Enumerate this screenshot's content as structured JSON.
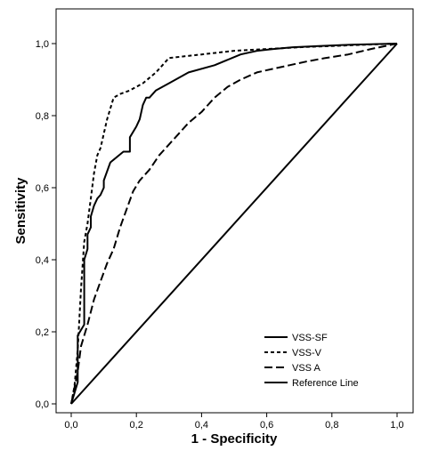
{
  "chart_data": {
    "type": "line",
    "title": "",
    "xlabel": "1 - Specificity",
    "ylabel": "Sensitivity",
    "xlim": [
      0,
      1
    ],
    "ylim": [
      0,
      1
    ],
    "grid": false,
    "legend_position": "bottom-right",
    "x_ticks": [
      "0,0",
      "0,2",
      "0,4",
      "0,6",
      "0,8",
      "1,0"
    ],
    "y_ticks": [
      "0,0",
      "0,2",
      "0,4",
      "0,6",
      "0,8",
      "1,0"
    ],
    "series": [
      {
        "name": "VSS-SF",
        "dash": "solid",
        "x": [
          0,
          0.02,
          0.02,
          0.04,
          0.04,
          0.05,
          0.05,
          0.06,
          0.06,
          0.07,
          0.08,
          0.09,
          0.1,
          0.1,
          0.12,
          0.16,
          0.18,
          0.18,
          0.2,
          0.21,
          0.22,
          0.23,
          0.24,
          0.26,
          0.3,
          0.36,
          0.44,
          0.52,
          0.57,
          0.62,
          0.68,
          0.76,
          0.86,
          1.0
        ],
        "y": [
          0,
          0.06,
          0.19,
          0.22,
          0.4,
          0.43,
          0.47,
          0.49,
          0.52,
          0.55,
          0.57,
          0.58,
          0.6,
          0.62,
          0.67,
          0.7,
          0.7,
          0.74,
          0.77,
          0.79,
          0.83,
          0.85,
          0.85,
          0.87,
          0.89,
          0.92,
          0.94,
          0.97,
          0.98,
          0.985,
          0.99,
          0.993,
          0.997,
          1.0
        ]
      },
      {
        "name": "VSS-V",
        "dash": "short",
        "x": [
          0,
          0.01,
          0.02,
          0.03,
          0.04,
          0.05,
          0.06,
          0.07,
          0.08,
          0.09,
          0.11,
          0.13,
          0.15,
          0.18,
          0.22,
          0.26,
          0.3,
          0.4,
          0.5,
          0.6,
          0.7,
          0.85,
          1.0
        ],
        "y": [
          0,
          0.05,
          0.15,
          0.32,
          0.45,
          0.5,
          0.57,
          0.64,
          0.69,
          0.71,
          0.79,
          0.85,
          0.86,
          0.87,
          0.89,
          0.92,
          0.96,
          0.97,
          0.98,
          0.985,
          0.99,
          0.995,
          1.0
        ]
      },
      {
        "name": "VSS A",
        "dash": "long",
        "x": [
          0,
          0.02,
          0.03,
          0.05,
          0.07,
          0.09,
          0.11,
          0.13,
          0.15,
          0.17,
          0.19,
          0.21,
          0.24,
          0.27,
          0.3,
          0.33,
          0.36,
          0.4,
          0.44,
          0.48,
          0.52,
          0.57,
          0.62,
          0.67,
          0.72,
          0.78,
          0.85,
          0.92,
          1.0
        ],
        "y": [
          0,
          0.09,
          0.16,
          0.22,
          0.29,
          0.34,
          0.39,
          0.43,
          0.49,
          0.54,
          0.59,
          0.62,
          0.65,
          0.69,
          0.72,
          0.75,
          0.78,
          0.81,
          0.85,
          0.88,
          0.9,
          0.92,
          0.93,
          0.94,
          0.95,
          0.96,
          0.97,
          0.985,
          1.0
        ]
      },
      {
        "name": "Reference Line",
        "dash": "solid",
        "x": [
          0,
          1
        ],
        "y": [
          0,
          1
        ]
      }
    ]
  }
}
